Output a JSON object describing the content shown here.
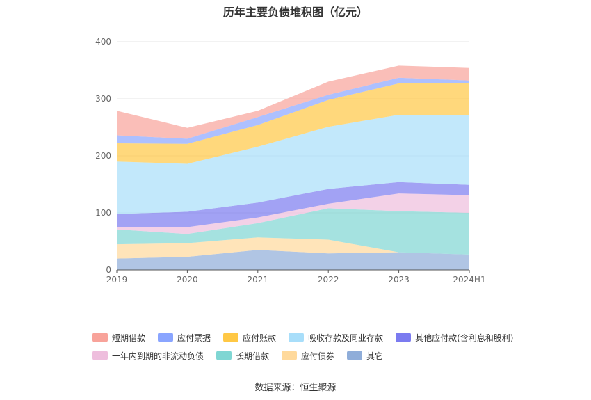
{
  "chart_data": {
    "type": "area",
    "stacked": true,
    "title": "历年主要负债堆积图（亿元）",
    "source": "数据来源：恒生聚源",
    "categories": [
      "2019",
      "2020",
      "2021",
      "2022",
      "2023",
      "2024H1"
    ],
    "ylim": [
      0,
      400
    ],
    "yticks": [
      0,
      100,
      200,
      300,
      400
    ],
    "grid": true,
    "legend_position": "bottom",
    "series": [
      {
        "name": "其它",
        "color": "#8fadd9",
        "values": [
          20,
          23,
          35,
          29,
          31,
          27
        ]
      },
      {
        "name": "应付债券",
        "color": "#ffd99b",
        "values": [
          25,
          24,
          22,
          24,
          0,
          0
        ]
      },
      {
        "name": "长期借款",
        "color": "#7fd6d3",
        "values": [
          26,
          16,
          25,
          55,
          72,
          73
        ]
      },
      {
        "name": "一年内到期的非流动负债",
        "color": "#eebedd",
        "values": [
          4,
          12,
          10,
          8,
          31,
          31
        ]
      },
      {
        "name": "其他应付款(含利息和股利)",
        "color": "#7b7bf0",
        "values": [
          23,
          27,
          26,
          26,
          20,
          18
        ]
      },
      {
        "name": "吸收存款及同业存款",
        "color": "#a8defa",
        "values": [
          92,
          84,
          98,
          109,
          118,
          122
        ]
      },
      {
        "name": "应付账款",
        "color": "#ffc845",
        "values": [
          32,
          35,
          38,
          47,
          55,
          57
        ]
      },
      {
        "name": "应付票据",
        "color": "#8aa5ff",
        "values": [
          14,
          9,
          14,
          9,
          10,
          4
        ]
      },
      {
        "name": "短期借款",
        "color": "#f8a39a",
        "values": [
          43,
          19,
          11,
          23,
          21,
          22
        ]
      }
    ],
    "legend_rows": [
      [
        "短期借款",
        "应付票据",
        "应付账款",
        "吸收存款及同业存款",
        "其他应付款(含利息和股利)"
      ],
      [
        "一年内到期的非流动负债",
        "长期借款",
        "应付债券",
        "其它"
      ]
    ]
  }
}
